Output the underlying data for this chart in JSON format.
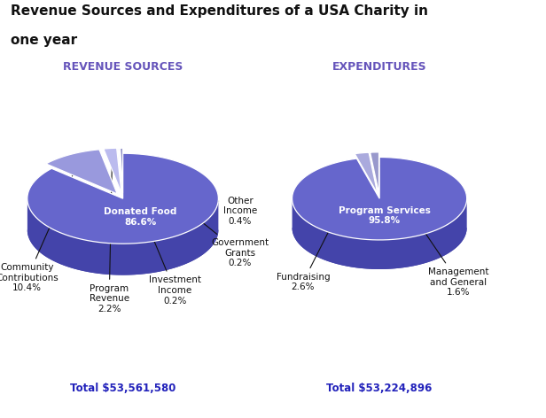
{
  "title_line1": "Revenue Sources and Expenditures of a USA Charity in",
  "title_line2": "one year",
  "title_fontsize": 11,
  "title_color": "#111111",
  "background_color": "#ffffff",
  "revenue": {
    "subtitle": "REVENUE SOURCES",
    "subtitle_color": "#6655bb",
    "total": "Total $53,561,580",
    "total_color": "#2222bb",
    "pcts": [
      86.6,
      10.4,
      2.2,
      0.2,
      0.2,
      0.4
    ],
    "colors": [
      "#6666cc",
      "#9999dd",
      "#bbbbee",
      "#aaaadd",
      "#8888cc",
      "#7777bb"
    ],
    "depth_colors": [
      "#4444aa",
      "#7777bb",
      "#9999cc",
      "#8888bb",
      "#6666aa",
      "#555599"
    ],
    "explode": [
      0.0,
      0.12,
      0.12,
      0.12,
      0.12,
      0.12
    ]
  },
  "expenditure": {
    "subtitle": "EXPENDITURES",
    "subtitle_color": "#6655bb",
    "total": "Total $53,224,896",
    "total_color": "#2222bb",
    "pcts": [
      95.8,
      2.6,
      1.6
    ],
    "colors": [
      "#6666cc",
      "#aaaadd",
      "#9999cc"
    ],
    "depth_colors": [
      "#4444aa",
      "#8888bb",
      "#7777aa"
    ],
    "explode": [
      0.0,
      0.12,
      0.12
    ]
  }
}
